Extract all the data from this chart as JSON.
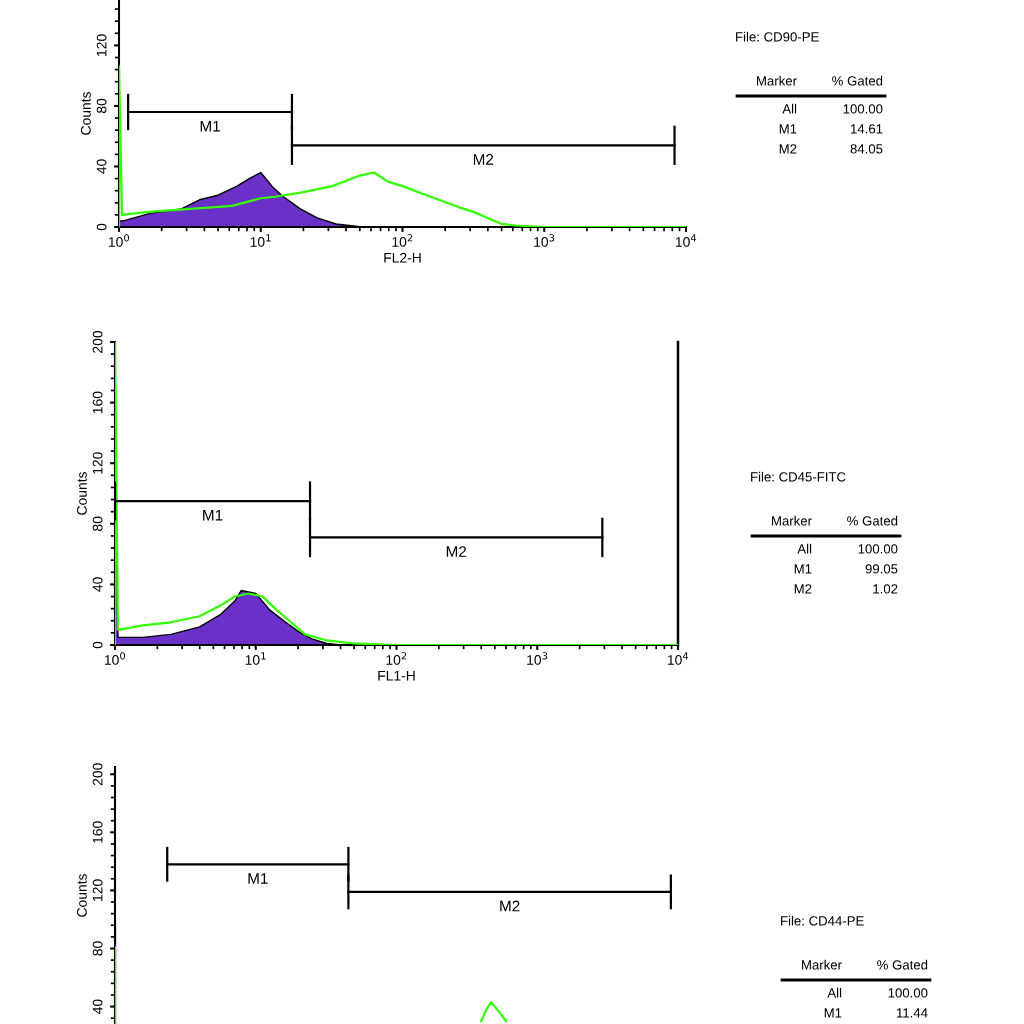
{
  "chart_data": [
    {
      "type": "line",
      "xlabel": "FL2-H",
      "ylabel": "Counts",
      "log": "x",
      "xlim": [
        1,
        10000
      ],
      "xticks": [
        {
          "value": 1,
          "label": "10$^{0}$"
        },
        {
          "value": 10,
          "label": "10$^{1}$"
        },
        {
          "value": 100,
          "label": "10$^{2}$"
        },
        {
          "value": 1000,
          "label": "10$^{3}$"
        },
        {
          "value": 10000,
          "label": "10$^{4}$"
        }
      ],
      "ylim": [
        0,
        150
      ],
      "yticks": [
        0,
        40,
        80,
        120
      ],
      "series": [
        {
          "type": "area",
          "color": "#6a30c8",
          "x": [
            1,
            1.07,
            1.66,
            2.75,
            3.7,
            5,
            6.8,
            8.3,
            10,
            12,
            14,
            19,
            25,
            34,
            52,
            63
          ],
          "values": [
            4,
            4,
            9,
            12,
            18,
            21,
            27,
            32,
            36,
            27,
            21,
            12,
            6,
            2,
            0,
            0
          ]
        },
        {
          "type": "line",
          "color": "#33ff00",
          "x": [
            1,
            1,
            1.05,
            1.6,
            3.2,
            6.3,
            10,
            12.6,
            20,
            32,
            50,
            63,
            79,
            100,
            158,
            251,
            316,
            398,
            501,
            631,
            1000,
            10000
          ],
          "values": [
            0,
            106,
            8,
            10,
            12,
            14,
            19,
            20,
            23,
            27,
            34,
            36,
            30,
            27,
            20,
            13,
            10,
            6,
            2,
            1,
            0,
            0
          ]
        },
        {
          "type": "line",
          "name": "M1",
          "color": "#000000",
          "x": [
            1.16,
            16.6
          ],
          "values": [
            76,
            76
          ],
          "errors": [
            12,
            12
          ]
        },
        {
          "type": "line",
          "name": "M2",
          "color": "#000000",
          "x": [
            16.6,
            8300
          ],
          "values": [
            54,
            54
          ],
          "errors": [
            13,
            13
          ]
        }
      ],
      "annotations": [
        "File: CD90-PE",
        "Marker",
        "% Gated",
        "All",
        "100.00",
        "M1",
        "14.61",
        "M2",
        "84.05"
      ]
    },
    {
      "type": "line",
      "xlabel": "FL1-H",
      "ylabel": "Counts",
      "log": "x",
      "xlim": [
        1,
        10000
      ],
      "xticks": [
        {
          "value": 1,
          "label": "10$^{0}$"
        },
        {
          "value": 10,
          "label": "10$^{1}$"
        },
        {
          "value": 100,
          "label": "10$^{2}$"
        },
        {
          "value": 1000,
          "label": "10$^{3}$"
        },
        {
          "value": 10000,
          "label": "10$^{4}$"
        }
      ],
      "ylim": [
        0,
        200
      ],
      "yticks": [
        0,
        40,
        80,
        120,
        160,
        200
      ],
      "series": [
        {
          "type": "area",
          "color": "#6a30c8",
          "x": [
            1,
            1,
            1.05,
            1.58,
            2.5,
            4,
            5.6,
            7.1,
            7.9,
            10,
            12.6,
            15.8,
            20,
            25,
            32,
            40
          ],
          "values": [
            0,
            108,
            5,
            5,
            7,
            12,
            20,
            29,
            36,
            34,
            23,
            16,
            9,
            4,
            1,
            0
          ]
        },
        {
          "type": "line",
          "color": "#33ff00",
          "x": [
            1,
            1,
            1.05,
            1.58,
            2.5,
            4,
            5.6,
            7.1,
            8.9,
            11.2,
            14.1,
            17.8,
            22.4,
            32,
            50,
            100,
            10000
          ],
          "values": [
            0,
            200,
            10,
            13,
            15,
            19,
            26,
            32,
            34,
            32,
            23,
            15,
            7,
            3,
            1,
            0,
            0
          ]
        },
        {
          "type": "line",
          "name": "M1",
          "color": "#000000",
          "x": [
            1,
            24.3
          ],
          "values": [
            95,
            95
          ],
          "errors": [
            13,
            13
          ]
        },
        {
          "type": "line",
          "name": "M2",
          "color": "#000000",
          "x": [
            24.3,
            2900
          ],
          "values": [
            71,
            71
          ],
          "errors": [
            13,
            13
          ]
        }
      ],
      "ref_lines": [
        {
          "axis": "x",
          "value": 10000,
          "color": "#000000"
        }
      ],
      "annotations": [
        "File: CD45-FITC",
        "Marker",
        "% Gated",
        "All",
        "100.00",
        "M1",
        "99.05",
        "M2",
        "1.02"
      ]
    },
    {
      "type": "line",
      "ylabel": "Counts",
      "log": "x",
      "tick_labels": "y",
      "xlim": [
        1,
        10000
      ],
      "ylim": [
        28,
        205
      ],
      "yticks": [
        40,
        80,
        120,
        160,
        200
      ],
      "series": [
        {
          "type": "line",
          "color": "#000000",
          "x": [
            1,
            1
          ],
          "values": [
            28,
            97
          ]
        },
        {
          "type": "line",
          "color": "#33ff00",
          "x": [
            1,
            1,
            10,
            400,
            430,
            470,
            500,
            550,
            600
          ],
          "values": [
            28,
            81,
            null,
            30,
            37,
            43,
            40,
            35,
            30
          ]
        },
        {
          "type": "line",
          "name": "M1",
          "color": "#000000",
          "x": [
            2.35,
            45.5
          ],
          "values": [
            138,
            138
          ],
          "errors": [
            12,
            12
          ]
        },
        {
          "type": "line",
          "name": "M2",
          "color": "#000000",
          "x": [
            45.5,
            8900
          ],
          "values": [
            119,
            119
          ],
          "errors": [
            12,
            12
          ]
        }
      ],
      "annotations": [
        "File: CD44-PE",
        "Marker",
        "% Gated",
        "All",
        "100.00",
        "M1",
        "11.44"
      ]
    }
  ]
}
